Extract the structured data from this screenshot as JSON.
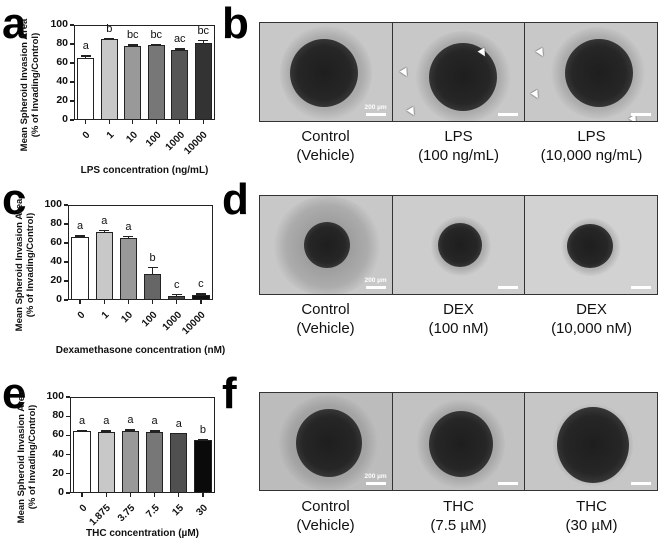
{
  "panels": {
    "a": "a",
    "b": "b",
    "c": "c",
    "d": "d",
    "e": "e",
    "f": "f"
  },
  "chart_data": [
    {
      "id": "a",
      "type": "bar",
      "title": "",
      "xlabel": "LPS concentration (ng/mL)",
      "ylabel": "Mean Spheroid Invasion Area (% of Invading/Control)",
      "ylabel_line1": "Mean Spheroid Invasion Area",
      "ylabel_line2": "(% of Invading/Control)",
      "ylim": [
        0,
        100
      ],
      "yticks": [
        "0",
        "20",
        "40",
        "60",
        "80",
        "100"
      ],
      "categories": [
        "0",
        "1",
        "10",
        "100",
        "1000",
        "10000"
      ],
      "values": [
        65,
        85,
        78,
        79,
        74,
        81
      ],
      "errors": [
        3,
        1.5,
        1.5,
        1,
        1.5,
        3
      ],
      "significance": [
        "a",
        "b",
        "bc",
        "bc",
        "ac",
        "bc"
      ],
      "colors": [
        "#ffffff",
        "#c8c8c8",
        "#999999",
        "#777777",
        "#555555",
        "#333333"
      ],
      "grid": false
    },
    {
      "id": "c",
      "type": "bar",
      "title": "",
      "xlabel": "Dexamethasone concentration (nM)",
      "ylabel": "Mean Spheroid Invasion Area (% of Invading/Control)",
      "ylabel_line1": "Mean Spheroid Invasion Area",
      "ylabel_line2": "(% of Invading/Control)",
      "ylim": [
        0,
        100
      ],
      "yticks": [
        "0",
        "20",
        "40",
        "60",
        "80",
        "100"
      ],
      "categories": [
        "0",
        "1",
        "10",
        "100",
        "1000",
        "10000"
      ],
      "values": [
        66,
        72,
        65,
        27,
        4,
        5
      ],
      "errors": [
        2,
        1.5,
        2.5,
        8,
        2.5,
        2
      ],
      "significance": [
        "a",
        "a",
        "a",
        "b",
        "c",
        "c"
      ],
      "colors": [
        "#ffffff",
        "#c8c8c8",
        "#999999",
        "#666666",
        "#444444",
        "#111111"
      ],
      "grid": false
    },
    {
      "id": "e",
      "type": "bar",
      "title": "",
      "xlabel": "THC concentration (µM)",
      "ylabel": "Mean Spheroid Invasion Area (% of Invading/Control)",
      "ylabel_line1": "Mean Spheroid Invasion Area",
      "ylabel_line2": "(% of Invading/Control)",
      "ylim": [
        0,
        100
      ],
      "yticks": [
        "0",
        "20",
        "40",
        "60",
        "80",
        "100"
      ],
      "categories": [
        "0",
        "1.875",
        "3.75",
        "7.5",
        "15",
        "30"
      ],
      "values": [
        65,
        64,
        65,
        64,
        62,
        55
      ],
      "errors": [
        0.8,
        1.2,
        1.2,
        1.2,
        1,
        1.2
      ],
      "significance": [
        "a",
        "a",
        "a",
        "a",
        "a",
        "b"
      ],
      "colors": [
        "#ffffff",
        "#c8c8c8",
        "#999999",
        "#777777",
        "#505050",
        "#0a0a0a"
      ],
      "grid": false
    }
  ],
  "micrographs": {
    "b": {
      "scale_label": "200 µm",
      "captions": [
        {
          "line1": "Control",
          "line2": "(Vehicle)"
        },
        {
          "line1": "LPS",
          "line2": "(100 ng/mL)"
        },
        {
          "line1": "LPS",
          "line2": "(10,000 ng/mL)"
        }
      ]
    },
    "d": {
      "scale_label": "200 µm",
      "captions": [
        {
          "line1": "Control",
          "line2": "(Vehicle)"
        },
        {
          "line1": "DEX",
          "line2": "(100 nM)"
        },
        {
          "line1": "DEX",
          "line2": "(10,000 nM)"
        }
      ]
    },
    "f": {
      "scale_label": "200 µm",
      "captions": [
        {
          "line1": "Control",
          "line2": "(Vehicle)"
        },
        {
          "line1": "THC",
          "line2": "(7.5 µM)"
        },
        {
          "line1": "THC",
          "line2": "(30 µM)"
        }
      ]
    }
  }
}
